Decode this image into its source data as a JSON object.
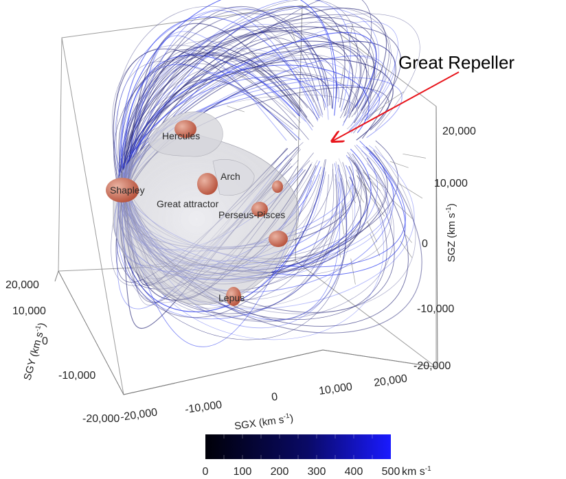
{
  "annotation": {
    "text": "Great Repeller",
    "arrow_color": "#e8141b"
  },
  "structures": {
    "hercules": "Hercules",
    "arch": "Arch",
    "shapley": "Shapley",
    "great_attractor": "Great attractor",
    "perseus_pisces": "Perseus-Pisces",
    "lepus": "Lepus"
  },
  "axes": {
    "sgz": {
      "label": "SGZ (km s",
      "superscript": "-1",
      "close": ")",
      "ticks": [
        "20,000",
        "10,000",
        "0",
        "-10,000",
        "-20,000"
      ]
    },
    "sgy": {
      "label": "SGY (km s",
      "superscript": "-1",
      "close": ")",
      "ticks": [
        "20,000",
        "10,000",
        "0",
        "-10,000",
        "-20,000"
      ]
    },
    "sgx": {
      "label": "SGX (km s",
      "superscript": "-1",
      "close": ")",
      "ticks": [
        "-20,000",
        "-10,000",
        "0",
        "10,000",
        "20,000"
      ]
    }
  },
  "colorbar": {
    "ticks": [
      "0",
      "100",
      "200",
      "300",
      "400",
      "500"
    ],
    "unit": "km s",
    "unit_superscript": "-1",
    "color_low": "#000008",
    "color_high": "#1a1aff"
  },
  "colors": {
    "flow_line": "#2a2a7a",
    "flow_line_fast": "#2e3df0",
    "basin": "#b0b0b8",
    "overdensity": "#c8664e",
    "box_edge": "#888888"
  }
}
